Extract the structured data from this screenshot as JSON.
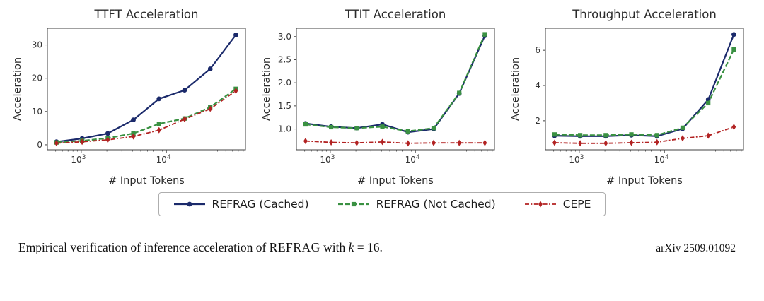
{
  "chart_data": [
    {
      "type": "line",
      "title": "TTFT Acceleration",
      "xlabel": "# Input Tokens",
      "ylabel": "Acceleration",
      "xscale": "log",
      "x": [
        512,
        1024,
        2048,
        4096,
        8192,
        16384,
        32768,
        65536
      ],
      "xlim": [
        400,
        85000
      ],
      "xticks_exp": [
        3,
        4
      ],
      "ylim": [
        -1.5,
        35
      ],
      "yticks": [
        0,
        10,
        20,
        30
      ],
      "ytick_decimals": 0,
      "grid": false,
      "series": [
        {
          "name": "REFRAG (Cached)",
          "values": [
            0.9,
            1.9,
            3.4,
            7.5,
            13.8,
            16.4,
            22.8,
            33.0
          ]
        },
        {
          "name": "REFRAG (Not Cached)",
          "values": [
            0.7,
            1.2,
            2.0,
            3.4,
            6.3,
            7.9,
            11.3,
            16.8
          ]
        },
        {
          "name": "CEPE",
          "values": [
            0.5,
            0.9,
            1.5,
            2.5,
            4.4,
            7.7,
            10.8,
            16.2
          ]
        }
      ]
    },
    {
      "type": "line",
      "title": "TTIT Acceleration",
      "xlabel": "# Input Tokens",
      "ylabel": "Acceleration",
      "xscale": "log",
      "x": [
        512,
        1024,
        2048,
        4096,
        8192,
        16384,
        32768,
        65536
      ],
      "xlim": [
        400,
        85000
      ],
      "xticks_exp": [
        3,
        4
      ],
      "ylim": [
        0.55,
        3.18
      ],
      "yticks": [
        1.0,
        1.5,
        2.0,
        2.5,
        3.0
      ],
      "ytick_decimals": 1,
      "grid": false,
      "series": [
        {
          "name": "REFRAG (Cached)",
          "values": [
            1.12,
            1.05,
            1.02,
            1.1,
            0.93,
            1.0,
            1.77,
            3.02
          ]
        },
        {
          "name": "REFRAG (Not Cached)",
          "values": [
            1.1,
            1.04,
            1.02,
            1.05,
            0.95,
            1.02,
            1.78,
            3.05
          ]
        },
        {
          "name": "CEPE",
          "values": [
            0.74,
            0.71,
            0.7,
            0.72,
            0.69,
            0.7,
            0.7,
            0.7
          ]
        }
      ]
    },
    {
      "type": "line",
      "title": "Throughput Acceleration",
      "xlabel": "# Input Tokens",
      "ylabel": "Acceleration",
      "xscale": "log",
      "x": [
        512,
        1024,
        2048,
        4096,
        8192,
        16384,
        32768,
        65536
      ],
      "xlim": [
        400,
        85000
      ],
      "xticks_exp": [
        3,
        4
      ],
      "ylim": [
        0.35,
        7.25
      ],
      "yticks": [
        2,
        4,
        6
      ],
      "ytick_decimals": 0,
      "grid": false,
      "series": [
        {
          "name": "REFRAG (Cached)",
          "values": [
            1.15,
            1.12,
            1.12,
            1.18,
            1.12,
            1.55,
            3.2,
            6.9
          ]
        },
        {
          "name": "REFRAG (Not Cached)",
          "values": [
            1.22,
            1.18,
            1.18,
            1.22,
            1.18,
            1.6,
            3.0,
            6.05
          ]
        },
        {
          "name": "CEPE",
          "values": [
            0.75,
            0.72,
            0.72,
            0.75,
            0.78,
            1.0,
            1.15,
            1.65
          ]
        }
      ]
    }
  ],
  "legend": {
    "items": [
      {
        "label": "REFRAG (Cached)",
        "color": "#1b2a6b",
        "dash": "",
        "marker": "circle",
        "width": 2.2
      },
      {
        "label": "REFRAG (Not Cached)",
        "color": "#3a9142",
        "dash": "7,3",
        "marker": "square",
        "width": 2.2
      },
      {
        "label": "CEPE",
        "color": "#b22222",
        "dash": "6,2.5,1.8,2.5",
        "marker": "diamond",
        "width": 1.8
      }
    ]
  },
  "caption": {
    "prefix": "Empirical verification of inference acceleration of ",
    "refrag": "REFRAG",
    "mid": " with ",
    "k": "k",
    "suffix": " = 16.",
    "arxiv": "arXiv 2509.01092"
  }
}
